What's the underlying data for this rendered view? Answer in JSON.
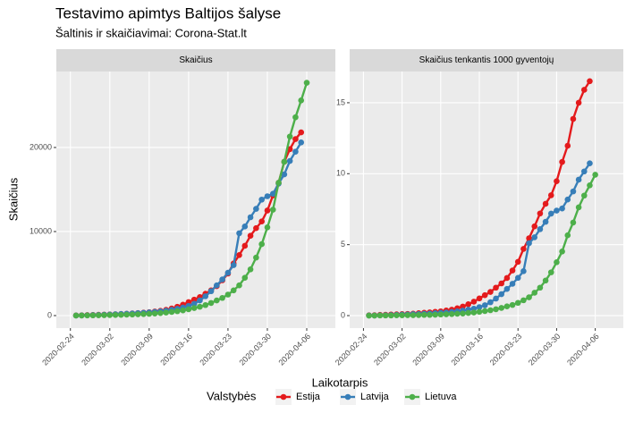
{
  "title": "Testavimo apimtys Baltijos šalyse",
  "subtitle": "Šaltinis ir skaičiavimai: Corona-Stat.lt",
  "x_label": "Laikotarpis",
  "legend_title": "Valstybės",
  "chart_data": [
    {
      "type": "line",
      "facet": "Skaičius",
      "y_label": "Skaičius",
      "x": [
        "2020-02-25",
        "2020-02-26",
        "2020-02-27",
        "2020-02-28",
        "2020-02-29",
        "2020-03-01",
        "2020-03-02",
        "2020-03-03",
        "2020-03-04",
        "2020-03-05",
        "2020-03-06",
        "2020-03-07",
        "2020-03-08",
        "2020-03-09",
        "2020-03-10",
        "2020-03-11",
        "2020-03-12",
        "2020-03-13",
        "2020-03-14",
        "2020-03-15",
        "2020-03-16",
        "2020-03-17",
        "2020-03-18",
        "2020-03-19",
        "2020-03-20",
        "2020-03-21",
        "2020-03-22",
        "2020-03-23",
        "2020-03-24",
        "2020-03-25",
        "2020-03-26",
        "2020-03-27",
        "2020-03-28",
        "2020-03-29",
        "2020-03-30",
        "2020-03-31",
        "2020-04-01",
        "2020-04-02",
        "2020-04-03",
        "2020-04-04",
        "2020-04-05",
        "2020-04-06"
      ],
      "series": [
        {
          "name": "Estija",
          "color": "#e41a1c",
          "values": [
            20,
            40,
            60,
            80,
            100,
            120,
            140,
            160,
            190,
            220,
            260,
            300,
            350,
            400,
            480,
            560,
            680,
            850,
            1050,
            1300,
            1600,
            1900,
            2200,
            2600,
            3000,
            3500,
            4200,
            5000,
            6200,
            7200,
            8300,
            9500,
            10400,
            11200,
            12500,
            14300,
            15800,
            18300,
            19800,
            21000,
            21800,
            null
          ]
        },
        {
          "name": "Latvija",
          "color": "#377eb8",
          "values": [
            10,
            20,
            40,
            60,
            80,
            100,
            130,
            160,
            190,
            220,
            250,
            290,
            330,
            380,
            430,
            500,
            580,
            680,
            800,
            950,
            1150,
            1400,
            1800,
            2300,
            2900,
            3600,
            4300,
            5100,
            6000,
            9800,
            10600,
            11700,
            12700,
            13800,
            14200,
            14500,
            15700,
            16800,
            18400,
            19500,
            20600,
            null
          ]
        },
        {
          "name": "Lietuva",
          "color": "#4daf4a",
          "values": [
            5,
            10,
            15,
            25,
            35,
            45,
            60,
            75,
            90,
            110,
            130,
            150,
            180,
            210,
            250,
            300,
            360,
            430,
            520,
            620,
            750,
            900,
            1050,
            1250,
            1500,
            1800,
            2100,
            2500,
            3000,
            3600,
            4500,
            5500,
            6900,
            8500,
            10500,
            12600,
            15800,
            18300,
            21300,
            23600,
            25600,
            27700
          ]
        }
      ],
      "xlim": [
        "2020-02-21T12:00",
        "2020-04-11T02:00"
      ],
      "xticks": [
        "2020-02-24",
        "2020-03-02",
        "2020-03-09",
        "2020-03-16",
        "2020-03-23",
        "2020-03-30",
        "2020-04-06"
      ],
      "ylim": [
        -1490,
        29040
      ],
      "yticks": [
        0,
        10000,
        20000
      ],
      "grid": true
    },
    {
      "type": "line",
      "facet": "Skaičius tenkantis 1000 gyventojų",
      "x": [
        "2020-02-25",
        "2020-02-26",
        "2020-02-27",
        "2020-02-28",
        "2020-02-29",
        "2020-03-01",
        "2020-03-02",
        "2020-03-03",
        "2020-03-04",
        "2020-03-05",
        "2020-03-06",
        "2020-03-07",
        "2020-03-08",
        "2020-03-09",
        "2020-03-10",
        "2020-03-11",
        "2020-03-12",
        "2020-03-13",
        "2020-03-14",
        "2020-03-15",
        "2020-03-16",
        "2020-03-17",
        "2020-03-18",
        "2020-03-19",
        "2020-03-20",
        "2020-03-21",
        "2020-03-22",
        "2020-03-23",
        "2020-03-24",
        "2020-03-25",
        "2020-03-26",
        "2020-03-27",
        "2020-03-28",
        "2020-03-29",
        "2020-03-30",
        "2020-03-31",
        "2020-04-01",
        "2020-04-02",
        "2020-04-03",
        "2020-04-04",
        "2020-04-05",
        "2020-04-06"
      ],
      "series": [
        {
          "name": "Estija",
          "color": "#e41a1c",
          "values": [
            0.02,
            0.03,
            0.05,
            0.06,
            0.08,
            0.09,
            0.11,
            0.12,
            0.14,
            0.17,
            0.2,
            0.23,
            0.27,
            0.3,
            0.36,
            0.42,
            0.52,
            0.64,
            0.8,
            0.98,
            1.21,
            1.44,
            1.67,
            1.97,
            2.27,
            2.65,
            3.18,
            3.79,
            4.7,
            5.45,
            6.29,
            7.2,
            7.88,
            8.48,
            9.47,
            10.83,
            11.97,
            13.86,
            15,
            15.91,
            16.52,
            null
          ]
        },
        {
          "name": "Latvija",
          "color": "#377eb8",
          "values": [
            0.01,
            0.01,
            0.02,
            0.03,
            0.04,
            0.05,
            0.07,
            0.08,
            0.1,
            0.11,
            0.13,
            0.15,
            0.17,
            0.2,
            0.22,
            0.26,
            0.3,
            0.35,
            0.42,
            0.49,
            0.6,
            0.73,
            0.94,
            1.2,
            1.51,
            1.88,
            2.24,
            2.66,
            3.13,
            5.1,
            5.52,
            6.09,
            6.61,
            7.19,
            7.4,
            7.55,
            8.18,
            8.75,
            9.58,
            10.16,
            10.73,
            null
          ]
        },
        {
          "name": "Lietuva",
          "color": "#4daf4a",
          "values": [
            0,
            0,
            0.01,
            0.01,
            0.01,
            0.02,
            0.02,
            0.03,
            0.03,
            0.04,
            0.05,
            0.05,
            0.06,
            0.08,
            0.09,
            0.11,
            0.13,
            0.15,
            0.19,
            0.22,
            0.27,
            0.32,
            0.38,
            0.45,
            0.54,
            0.65,
            0.75,
            0.9,
            1.08,
            1.29,
            1.61,
            1.97,
            2.47,
            3.05,
            3.76,
            4.52,
            5.66,
            6.56,
            7.63,
            8.46,
            9.18,
            9.93
          ]
        }
      ],
      "xlim": [
        "2020-02-21T12:00",
        "2020-04-11T02:00"
      ],
      "xticks": [
        "2020-02-24",
        "2020-03-02",
        "2020-03-09",
        "2020-03-16",
        "2020-03-23",
        "2020-03-30",
        "2020-04-06"
      ],
      "ylim": [
        -0.88,
        17.2
      ],
      "yticks": [
        0,
        5,
        10,
        15
      ],
      "grid": true
    }
  ]
}
